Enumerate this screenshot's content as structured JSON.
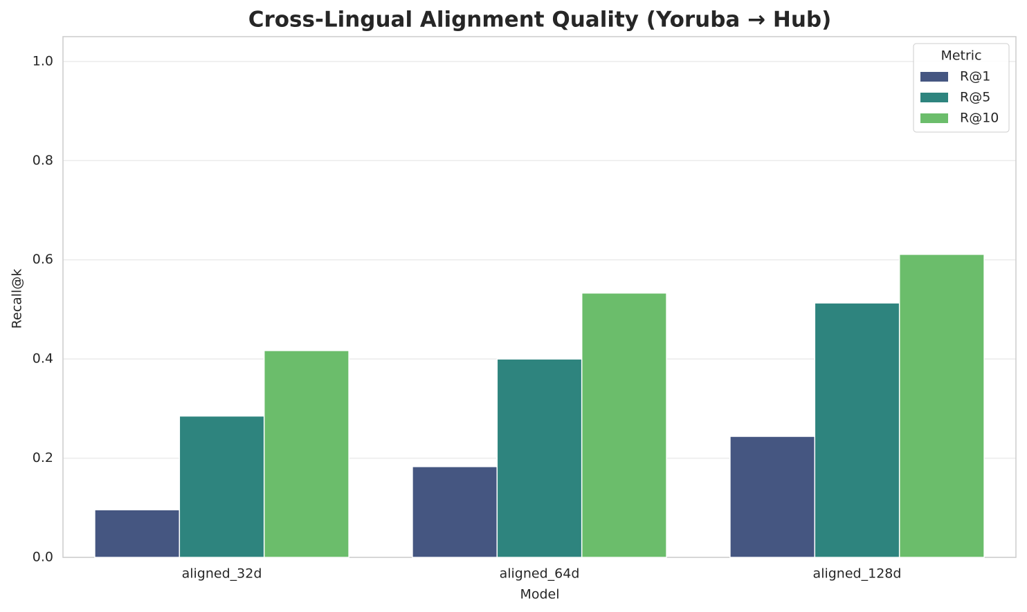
{
  "chart_data": {
    "type": "bar",
    "title": "Cross-Lingual Alignment Quality (Yoruba → Hub)",
    "x_label": "Model",
    "y_label": "Recall@k",
    "categories": [
      "aligned_32d",
      "aligned_64d",
      "aligned_128d"
    ],
    "series": [
      {
        "name": "R@1",
        "color": "#455681",
        "values": [
          0.096,
          0.183,
          0.244
        ]
      },
      {
        "name": "R@5",
        "color": "#2e847e",
        "values": [
          0.285,
          0.4,
          0.513
        ]
      },
      {
        "name": "R@10",
        "color": "#6bbd6b",
        "values": [
          0.417,
          0.533,
          0.611
        ]
      }
    ],
    "legend_title": "Metric",
    "legend": "upper right",
    "ylim": [
      0,
      1.05
    ],
    "yticks": [
      {
        "value": 0,
        "label": "0.0"
      },
      0.2,
      0.4,
      0.6,
      0.8,
      {
        "value": 1,
        "label": "1.0"
      }
    ],
    "grid": true
  }
}
